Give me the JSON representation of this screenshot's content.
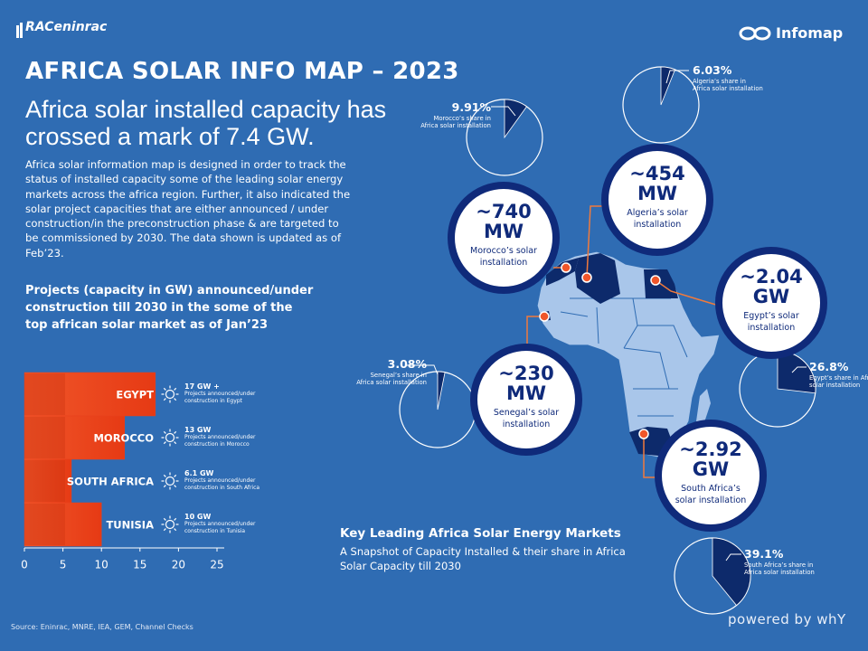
{
  "header": {
    "logo": "RACeninrac",
    "brand": "Infomap"
  },
  "title": "AFRICA SOLAR INFO MAP – 2023",
  "subtitle": "Africa solar installed capacity has crossed a mark of 7.4 GW.",
  "intro": "Africa solar information map is designed in order to track the status of installed capacity some of the leading solar energy markets across the africa region. Further, it also indicated the solar project capacities that are either announced / under construction/in the preconstruction phase & are targeted to be commissioned by 2030. The data shown is updated as of Feb’23.",
  "projects_chart": {
    "type": "bar",
    "title": "Projects (capacity in GW) announced/under construction till 2030 in the some of the top african solar market as of Jan’23",
    "categories": [
      "EGYPT",
      "MOROCCO",
      "SOUTH AFRICA",
      "TUNISIA"
    ],
    "values": [
      17,
      13,
      6.1,
      10
    ],
    "value_labels": [
      "17 GW +",
      "13 GW",
      "6.1 GW",
      "10 GW"
    ],
    "notes": [
      "Projects announced/under construction in Egypt",
      "Projects announced/under construction in Morocco",
      "Projects announced/under construction in South Africa",
      "Projects announced/under construction in Tunisia"
    ],
    "color": "#e8401c",
    "xlim": [
      0,
      25
    ],
    "xticks": [
      0,
      5,
      10,
      15,
      20,
      25
    ]
  },
  "markets": [
    {
      "capacity": "~740",
      "unit": "MW",
      "caption": "Morocco’s solar installation",
      "share": 9.91,
      "share_label": "9.91%",
      "share_caption": "Morocco’s share in Africa solar installation"
    },
    {
      "capacity": "~454",
      "unit": "MW",
      "caption": "Algeria’s solar installation",
      "share": 6.03,
      "share_label": "6.03%",
      "share_caption": "Algeria’s share in Africa solar installation"
    },
    {
      "capacity": "~2.04",
      "unit": "GW",
      "caption": "Egypt’s solar installation",
      "share": 26.8,
      "share_label": "26.8%",
      "share_caption": "Egypt’s share in Africa solar installation"
    },
    {
      "capacity": "~230",
      "unit": "MW",
      "caption": "Senegal’s solar installation",
      "share": 3.08,
      "share_label": "3.08%",
      "share_caption": "Senegal’s share in Africa solar installation"
    },
    {
      "capacity": "~2.92",
      "unit": "GW",
      "caption": "South Africa’s solar installation",
      "share": 39.1,
      "share_label": "39.1%",
      "share_caption": "South Africa’s share in Africa solar installation"
    }
  ],
  "key": {
    "title": "Key Leading Africa Solar Energy Markets",
    "subtitle": "A Snapshot of Capacity Installed & their share in Africa Solar Capacity till 2030"
  },
  "footer": {
    "powered_by": "powered by whY",
    "source": "Source: Eninrac, MNRE, IEA, GEM, Channel Checks"
  }
}
